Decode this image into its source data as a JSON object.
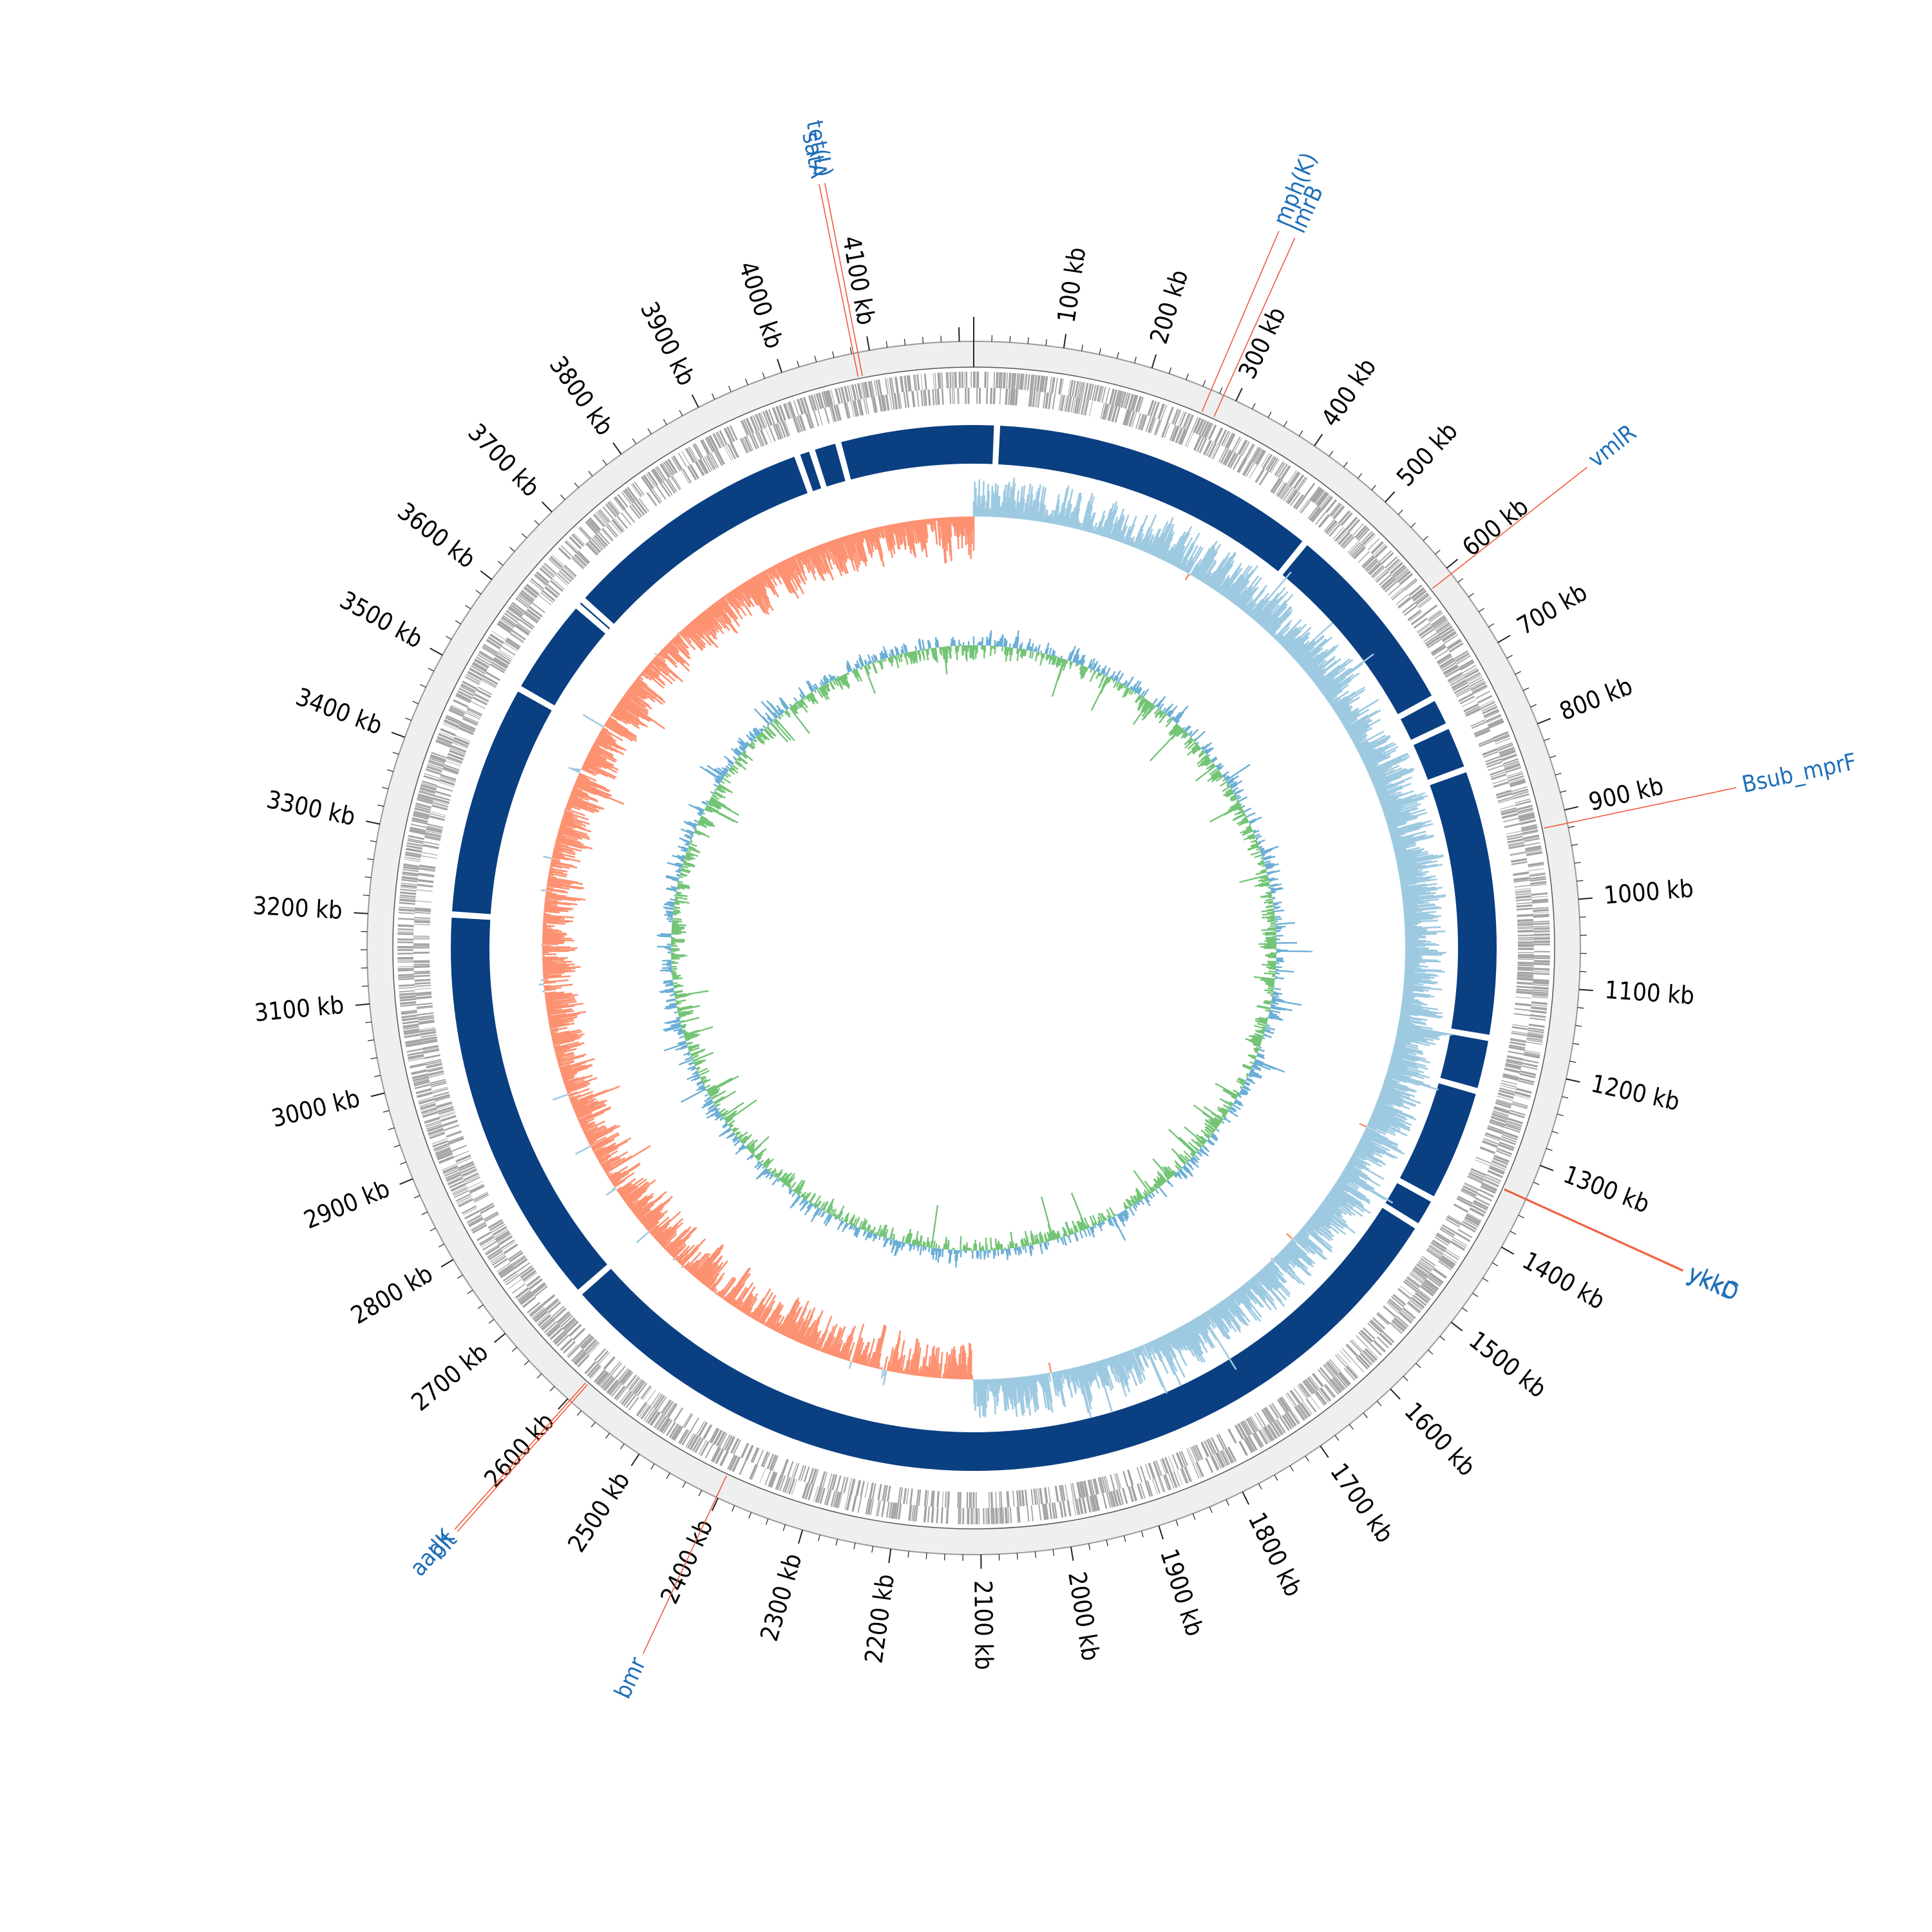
{
  "genome": {
    "ticks": [
      {
        "kb": 100,
        "label": "100 kb"
      },
      {
        "kb": 200,
        "label": "200 kb"
      },
      {
        "kb": 300,
        "label": "300 kb"
      },
      {
        "kb": 400,
        "label": "400 kb"
      },
      {
        "kb": 500,
        "label": "500 kb"
      },
      {
        "kb": 600,
        "label": "600 kb"
      },
      {
        "kb": 700,
        "label": "700 kb"
      },
      {
        "kb": 800,
        "label": "800 kb"
      },
      {
        "kb": 900,
        "label": "900 kb"
      },
      {
        "kb": 1000,
        "label": "1000 kb"
      },
      {
        "kb": 1100,
        "label": "1100 kb"
      },
      {
        "kb": 1200,
        "label": "1200 kb"
      },
      {
        "kb": 1300,
        "label": "1300 kb"
      },
      {
        "kb": 1400,
        "label": "1400 kb"
      },
      {
        "kb": 1500,
        "label": "1500 kb"
      },
      {
        "kb": 1600,
        "label": "1600 kb"
      },
      {
        "kb": 1700,
        "label": "1700 kb"
      },
      {
        "kb": 1800,
        "label": "1800 kb"
      },
      {
        "kb": 1900,
        "label": "1900 kb"
      },
      {
        "kb": 2000,
        "label": "2000 kb"
      },
      {
        "kb": 2100,
        "label": "2100 kb"
      },
      {
        "kb": 2200,
        "label": "2200 kb"
      },
      {
        "kb": 2300,
        "label": "2300 kb"
      },
      {
        "kb": 2400,
        "label": "2400 kb"
      },
      {
        "kb": 2500,
        "label": "2500 kb"
      },
      {
        "kb": 2600,
        "label": "2600 kb"
      },
      {
        "kb": 2700,
        "label": "2700 kb"
      },
      {
        "kb": 2800,
        "label": "2800 kb"
      },
      {
        "kb": 2900,
        "label": "2900 kb"
      },
      {
        "kb": 3000,
        "label": "3000 kb"
      },
      {
        "kb": 3100,
        "label": "3100 kb"
      },
      {
        "kb": 3200,
        "label": "3200 kb"
      },
      {
        "kb": 3300,
        "label": "3300 kb"
      },
      {
        "kb": 3400,
        "label": "3400 kb"
      },
      {
        "kb": 3500,
        "label": "3500 kb"
      },
      {
        "kb": 3600,
        "label": "3600 kb"
      },
      {
        "kb": 3700,
        "label": "3700 kb"
      },
      {
        "kb": 3800,
        "label": "3800 kb"
      },
      {
        "kb": 3900,
        "label": "3900 kb"
      },
      {
        "kb": 4000,
        "label": "4000 kb"
      },
      {
        "kb": 4100,
        "label": "4100 kb"
      }
    ],
    "genes": [
      {
        "name": "tet(L)",
        "kb": 4087
      },
      {
        "name": "satA",
        "kb": 4082
      },
      {
        "name": "mph(K)",
        "kb": 270
      },
      {
        "name": "lmrB",
        "kb": 285
      },
      {
        "name": "vmlR",
        "kb": 608
      },
      {
        "name": "Bsub_mprF",
        "kb": 915
      },
      {
        "name": "ykkC",
        "kb": 1340
      },
      {
        "name": "ykkD",
        "kb": 1341
      },
      {
        "name": "aadK",
        "kb": 2597
      },
      {
        "name": "blt",
        "kb": 2594
      },
      {
        "name": "bmr",
        "kb": 2402
      }
    ],
    "contig_gaps_kb": [
      30,
      460,
      720,
      760,
      820,
      1170,
      1240,
      1390,
      1430,
      2680,
      3205,
      3510,
      3640,
      3650,
      3985,
      4005,
      4040
    ],
    "colors": {
      "backbone_ring": "#efefef",
      "cds": "#a3a3a3",
      "contigs": "#0a3f82",
      "gc_skew_positive": "#9ecae1",
      "gc_skew_negative": "#fc9272",
      "gc_content_high": "#6baed6",
      "gc_content_low": "#74c476",
      "gene_label": "#1f6fb8",
      "gene_line": "#f15a3a"
    }
  }
}
